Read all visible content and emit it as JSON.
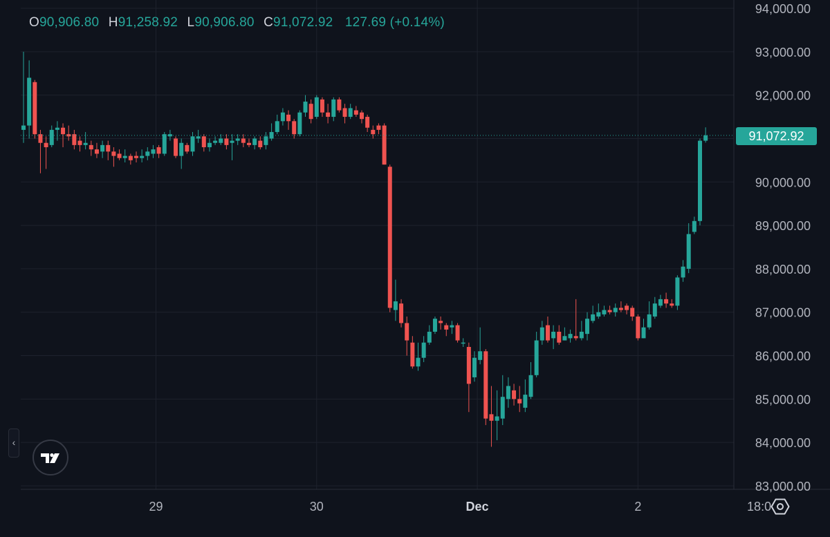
{
  "legend": {
    "o_label": "O",
    "o_value": "90,906.80",
    "h_label": "H",
    "h_value": "91,258.92",
    "l_label": "L",
    "l_value": "90,906.80",
    "c_label": "C",
    "c_value": "91,072.92",
    "change": "127.69 (+0.14%)"
  },
  "current_price_label": "91,072.92",
  "collapse_glyph": "‹",
  "colors": {
    "background": "#0f131c",
    "up": "#26a69a",
    "down": "#ef5350",
    "grid": "#1e222d",
    "axis_text": "#b2b5be"
  },
  "icons": {
    "logo": "tradingview-logo-icon",
    "settings": "settings-hexagon-icon",
    "collapse": "chevron-left-icon"
  },
  "chart_data": {
    "type": "candlestick",
    "y_ticks": [
      "94,000.00",
      "93,000.00",
      "92,000.00",
      "91,000.00",
      "90,000.00",
      "89,000.00",
      "88,000.00",
      "87,000.00",
      "86,000.00",
      "85,000.00",
      "84,000.00",
      "83,000.00"
    ],
    "y_tick_values": [
      94000,
      93000,
      92000,
      91000,
      90000,
      89000,
      88000,
      87000,
      86000,
      85000,
      84000,
      83000
    ],
    "ylim": [
      82950,
      94150
    ],
    "x_ticks": [
      {
        "label": "29",
        "index": 23.5,
        "bold": false
      },
      {
        "label": "30",
        "index": 52,
        "bold": false
      },
      {
        "label": "Dec",
        "index": 80.5,
        "bold": true
      },
      {
        "label": "2",
        "index": 109,
        "bold": false
      },
      {
        "label": "18:0",
        "index": 130.5,
        "bold": false
      }
    ],
    "last_price": 91072.92,
    "candles": [
      [
        91200,
        91300,
        93000,
        90900
      ],
      [
        91300,
        92400,
        92800,
        91000
      ],
      [
        92300,
        91100,
        92350,
        91000
      ],
      [
        91100,
        90900,
        91200,
        90200
      ],
      [
        90900,
        90800,
        91050,
        90300
      ],
      [
        90850,
        91200,
        91300,
        90800
      ],
      [
        91200,
        91250,
        91400,
        90950
      ],
      [
        91250,
        91100,
        91350,
        90800
      ],
      [
        91100,
        91050,
        91300,
        90950
      ],
      [
        91100,
        90850,
        91200,
        90750
      ],
      [
        90950,
        90850,
        91050,
        90700
      ],
      [
        90850,
        90900,
        91150,
        90750
      ],
      [
        90850,
        90750,
        90950,
        90600
      ],
      [
        90750,
        90650,
        90900,
        90550
      ],
      [
        90700,
        90850,
        90950,
        90550
      ],
      [
        90850,
        90700,
        90950,
        90500
      ],
      [
        90700,
        90600,
        90800,
        90350
      ],
      [
        90650,
        90550,
        90750,
        90500
      ],
      [
        90550,
        90600,
        90750,
        90450
      ],
      [
        90600,
        90500,
        90650,
        90400
      ],
      [
        90600,
        90550,
        90700,
        90450
      ],
      [
        90550,
        90600,
        90750,
        90450
      ],
      [
        90600,
        90700,
        90800,
        90500
      ],
      [
        90650,
        90750,
        90850,
        90550
      ],
      [
        90800,
        90650,
        90850,
        90550
      ],
      [
        90650,
        91100,
        91150,
        90600
      ],
      [
        91050,
        91100,
        91200,
        90950
      ],
      [
        91000,
        90600,
        91050,
        90550
      ],
      [
        90600,
        90900,
        91000,
        90300
      ],
      [
        90850,
        90700,
        90900,
        90650
      ],
      [
        90700,
        91050,
        91150,
        90600
      ],
      [
        91000,
        91050,
        91200,
        90900
      ],
      [
        91050,
        90800,
        91100,
        90700
      ],
      [
        90800,
        90900,
        91000,
        90700
      ],
      [
        90900,
        90950,
        91050,
        90850
      ],
      [
        90900,
        91000,
        91100,
        90850
      ],
      [
        91000,
        90850,
        91100,
        90750
      ],
      [
        90900,
        90950,
        91100,
        90500
      ],
      [
        90950,
        91000,
        91100,
        90850
      ],
      [
        91000,
        90900,
        91100,
        90800
      ],
      [
        90900,
        90850,
        91000,
        90800
      ],
      [
        90850,
        91000,
        91050,
        90750
      ],
      [
        90950,
        90800,
        91050,
        90750
      ],
      [
        90850,
        91050,
        91150,
        90750
      ],
      [
        91000,
        91150,
        91350,
        90950
      ],
      [
        91150,
        91400,
        91550,
        91100
      ],
      [
        91400,
        91600,
        91700,
        91300
      ],
      [
        91550,
        91400,
        91650,
        91200
      ],
      [
        91400,
        91100,
        91450,
        91000
      ],
      [
        91100,
        91600,
        91650,
        91050
      ],
      [
        91600,
        91850,
        92000,
        91500
      ],
      [
        91800,
        91450,
        91900,
        91350
      ],
      [
        91500,
        91950,
        92000,
        91450
      ],
      [
        91900,
        91600,
        91950,
        91500
      ],
      [
        91600,
        91500,
        91800,
        91350
      ],
      [
        91500,
        91900,
        91950,
        91400
      ],
      [
        91900,
        91650,
        91950,
        91600
      ],
      [
        91700,
        91500,
        91800,
        91350
      ],
      [
        91500,
        91700,
        91800,
        91450
      ],
      [
        91650,
        91550,
        91750,
        91500
      ],
      [
        91600,
        91450,
        91650,
        91350
      ],
      [
        91500,
        91250,
        91550,
        91150
      ],
      [
        91200,
        91100,
        91300,
        91000
      ],
      [
        91300,
        91200,
        91350,
        91100
      ],
      [
        91300,
        90400,
        91350,
        90400
      ],
      [
        90350,
        87100,
        90400,
        87000
      ],
      [
        87050,
        87250,
        87750,
        86800
      ],
      [
        87200,
        86750,
        87300,
        86650
      ],
      [
        86750,
        86350,
        86900,
        86000
      ],
      [
        86300,
        85750,
        86450,
        85700
      ],
      [
        85750,
        85950,
        86300,
        85650
      ],
      [
        85950,
        86300,
        86450,
        85850
      ],
      [
        86300,
        86550,
        86700,
        86250
      ],
      [
        86550,
        86850,
        86900,
        86500
      ],
      [
        86800,
        86750,
        86900,
        86600
      ],
      [
        86700,
        86600,
        86750,
        86450
      ],
      [
        86650,
        86700,
        86800,
        86500
      ],
      [
        86700,
        86350,
        86750,
        86300
      ],
      [
        86300,
        86300,
        86400,
        86200
      ],
      [
        86200,
        85350,
        86300,
        84700
      ],
      [
        85500,
        85950,
        86100,
        85400
      ],
      [
        85900,
        86100,
        86650,
        85800
      ],
      [
        86100,
        84550,
        86150,
        84400
      ],
      [
        84650,
        84500,
        85300,
        83900
      ],
      [
        84500,
        84600,
        85200,
        84050
      ],
      [
        84550,
        85050,
        85550,
        84400
      ],
      [
        85000,
        85300,
        85500,
        84800
      ],
      [
        85200,
        85000,
        85350,
        84850
      ],
      [
        85000,
        84900,
        85300,
        84700
      ],
      [
        84800,
        85100,
        85450,
        84700
      ],
      [
        85050,
        85550,
        85850,
        85000
      ],
      [
        85550,
        86350,
        86550,
        85500
      ],
      [
        86350,
        86650,
        86800,
        86250
      ],
      [
        86700,
        86350,
        86900,
        86300
      ],
      [
        86400,
        86550,
        86700,
        86150
      ],
      [
        86550,
        86300,
        86700,
        86250
      ],
      [
        86350,
        86450,
        86650,
        86350
      ],
      [
        86400,
        86500,
        86600,
        86300
      ],
      [
        86450,
        86400,
        87300,
        86350
      ],
      [
        86400,
        86550,
        86800,
        86350
      ],
      [
        86500,
        86850,
        87000,
        86350
      ],
      [
        86800,
        86950,
        87150,
        86750
      ],
      [
        86900,
        87000,
        87200,
        86850
      ],
      [
        86950,
        87050,
        87150,
        86900
      ],
      [
        87050,
        87000,
        87150,
        86950
      ],
      [
        87000,
        87100,
        87200,
        86900
      ],
      [
        87100,
        87050,
        87250,
        87000
      ],
      [
        87150,
        87050,
        87200,
        86950
      ],
      [
        87100,
        86900,
        87150,
        86800
      ],
      [
        86900,
        86400,
        86950,
        86350
      ],
      [
        86400,
        86650,
        86850,
        86400
      ],
      [
        86650,
        86950,
        87250,
        86600
      ],
      [
        86900,
        87200,
        87350,
        86850
      ],
      [
        87150,
        87300,
        87400,
        87100
      ],
      [
        87300,
        87200,
        87450,
        87100
      ],
      [
        87200,
        87150,
        87300,
        87100
      ],
      [
        87150,
        87800,
        87850,
        87050
      ],
      [
        87800,
        88050,
        88200,
        87700
      ],
      [
        88000,
        88800,
        89050,
        87900
      ],
      [
        88850,
        89100,
        89200,
        88800
      ],
      [
        89100,
        90950,
        91000,
        89000
      ],
      [
        90950,
        91073,
        91258,
        90906
      ]
    ]
  }
}
